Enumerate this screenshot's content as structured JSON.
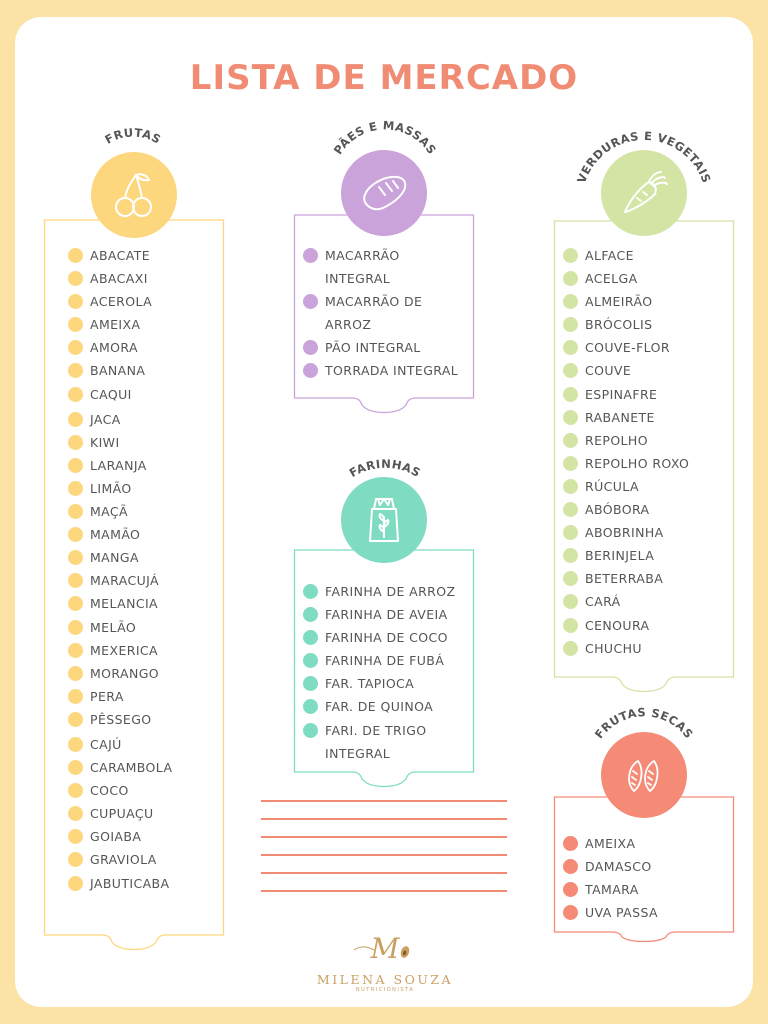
{
  "title": "LISTA DE MERCADO",
  "colors": {
    "title": "#f08c74",
    "frutas": "#fdd77e",
    "paes": "#c9a3d9",
    "verduras": "#d4e4a5",
    "farinhas": "#7fdcc3",
    "secas": "#f58a77",
    "lines": "#f08c74"
  },
  "sections": {
    "frutas": {
      "heading": "FRUTAS",
      "icon": "cherries-icon",
      "items": [
        "ABACATE",
        "ABACAXI",
        "ACEROLA",
        "AMEIXA",
        "AMORA",
        "BANANA",
        "CAQUI",
        "JACA",
        "KIWI",
        "LARANJA",
        "LIMÃO",
        "MAÇÃ",
        "MAMÃO",
        "MANGA",
        "MARACUJÁ",
        "MELANCIA",
        "MELÃO",
        "MEXERICA",
        "MORANGO",
        "PERA",
        "PÊSSEGO",
        "CAJÚ",
        "CARAMBOLA",
        "COCO",
        "CUPUAÇU",
        "GOIABA",
        "GRAVIOLA",
        "JABUTICABA"
      ]
    },
    "paes": {
      "heading": "PÃES E MASSAS",
      "icon": "bread-icon",
      "items": [
        "MACARRÃO INTEGRAL",
        "MACARRÃO DE ARROZ",
        "PÃO INTEGRAL",
        "TORRADA INTEGRAL"
      ]
    },
    "verduras": {
      "heading": "VERDURAS E VEGETAIS",
      "icon": "carrot-icon",
      "items": [
        "ALFACE",
        "ACELGA",
        "ALMEIRÃO",
        "BRÓCOLIS",
        "COUVE-FLOR",
        "COUVE",
        "ESPINAFRE",
        "RABANETE",
        "REPOLHO",
        "REPOLHO ROXO",
        "RÚCULA",
        "ABÓBORA",
        "ABOBRINHA",
        "BERINJELA",
        "BETERRABA",
        "CARÁ",
        "CENOURA",
        "CHUCHU"
      ]
    },
    "farinhas": {
      "heading": "FARINHAS",
      "icon": "flour-bag-icon",
      "items": [
        "FARINHA DE ARROZ",
        "FARINHA DE AVEIA",
        "FARINHA DE COCO",
        "FARINHA DE FUBÁ",
        "FAR. TAPIOCA",
        "FAR. DE QUINOA",
        "FARI. DE TRIGO INTEGRAL"
      ]
    },
    "secas": {
      "heading": "FRUTAS SECAS",
      "icon": "almonds-icon",
      "items": [
        "AMEIXA",
        "DAMASCO",
        "TAMARA",
        "UVA PASSA"
      ]
    }
  },
  "brand": {
    "monogram": "M",
    "name": "MILENA SOUZA",
    "subtitle": "NUTRICIONISTA"
  }
}
